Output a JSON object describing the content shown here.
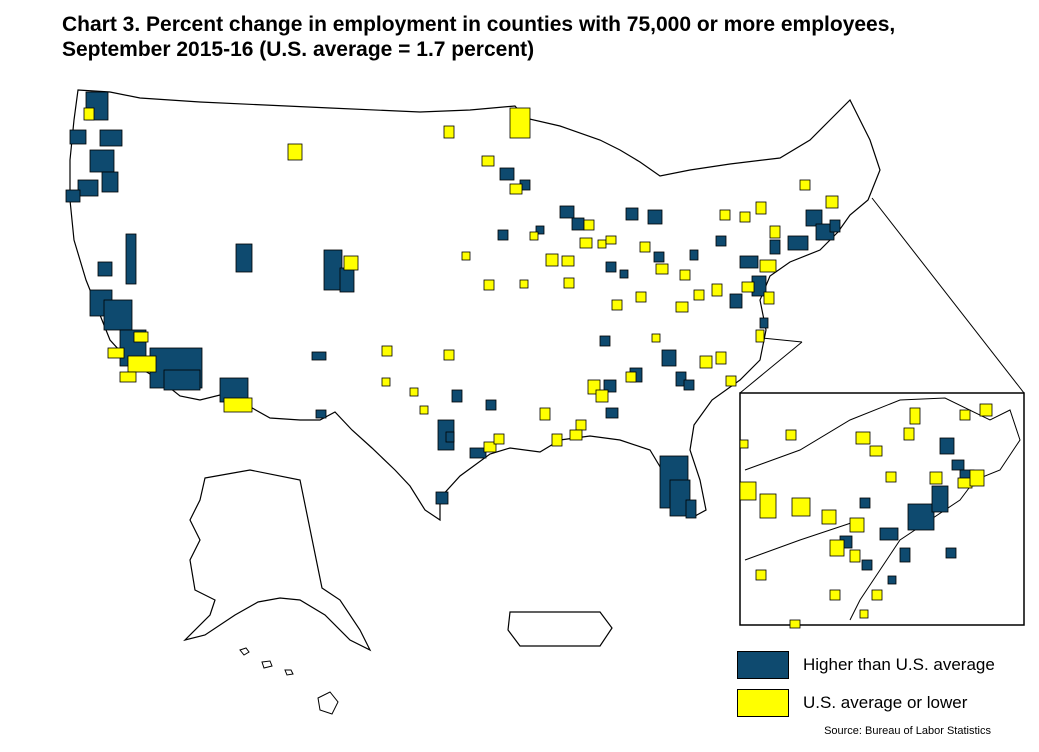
{
  "title": {
    "line1": "Chart 3. Percent change in employment in counties with 75,000 or more employees,",
    "line2": "September 2015-16 (U.S. average = 1.7 percent)"
  },
  "legend": [
    {
      "label": "Higher than U.S. average",
      "color": "#0e4a6f"
    },
    {
      "label": "U.S. average or lower",
      "color": "#ffff00"
    }
  ],
  "source": "Source: Bureau of Labor Statistics",
  "colors": {
    "above": "#0e4a6f",
    "below": "#ffff00",
    "outline": "#000000",
    "land": "#ffffff"
  }
}
